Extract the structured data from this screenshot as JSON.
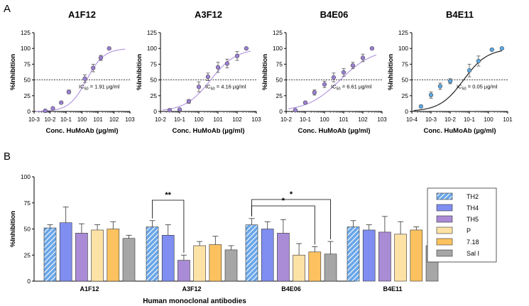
{
  "panels": {
    "a": "A",
    "b": "B"
  },
  "chart_data": [
    {
      "type": "scatter",
      "title": "A1F12",
      "xlabel": "Conc. HuMoAb (µg/ml)",
      "ylabel": "%Inhibition",
      "xscale": "log",
      "xlim_exp": [
        -3,
        3
      ],
      "ylim": [
        0,
        125
      ],
      "yticks": [
        0,
        25,
        50,
        75,
        100,
        125
      ],
      "xtick_labels": [
        "10-3",
        "10-2",
        "10-1",
        "100",
        "101",
        "102",
        "103"
      ],
      "x": [
        0.005,
        0.015,
        0.05,
        0.15,
        1.5,
        5,
        15,
        50
      ],
      "y": [
        1,
        5,
        14,
        31,
        52,
        69,
        85,
        100
      ],
      "err": [
        0,
        0,
        2,
        3,
        6,
        6,
        4,
        0
      ],
      "ic50": 1.91,
      "ic50_text": "1.91 µg/ml",
      "ic50_prefix": "IC",
      "ic50_sub": "50",
      "ic50_eq": " = ",
      "hill": 0.8,
      "point_color": "#9b7fd4",
      "curve_color": "#b59ae0"
    },
    {
      "type": "scatter",
      "title": "A3F12",
      "xlabel": "Conc. HuMoAb (µg/ml)",
      "ylabel": "%Inhibition",
      "xscale": "log",
      "xlim_exp": [
        -2,
        3
      ],
      "ylim": [
        0,
        125
      ],
      "yticks": [
        0,
        25,
        50,
        75,
        100,
        125
      ],
      "xtick_labels": [
        "10-2",
        "10-1",
        "100",
        "101",
        "102",
        "103"
      ],
      "x": [
        0.03,
        0.1,
        0.3,
        1,
        3,
        10,
        30,
        100,
        300
      ],
      "y": [
        2,
        3,
        16,
        39,
        55,
        70,
        76,
        88,
        100
      ],
      "err": [
        0,
        0,
        3,
        8,
        6,
        8,
        7,
        7,
        0
      ],
      "ic50": 4.16,
      "ic50_text": "4.16 µg/ml",
      "ic50_prefix": "IC",
      "ic50_sub": "50",
      "ic50_eq": " = ",
      "hill": 0.65,
      "point_color": "#9b7fd4",
      "curve_color": "#b59ae0"
    },
    {
      "type": "scatter",
      "title": "B4E06",
      "xlabel": "Conc. HuMoAb (µg/ml)",
      "ylabel": "%Inhibition",
      "xscale": "log",
      "xlim_exp": [
        -2,
        3
      ],
      "ylim": [
        0,
        125
      ],
      "yticks": [
        0,
        25,
        50,
        75,
        100,
        125
      ],
      "xtick_labels": [
        "10-2",
        "10-1",
        "100",
        "101",
        "102",
        "103"
      ],
      "x": [
        0.03,
        0.1,
        0.3,
        1,
        3,
        10,
        30,
        100,
        300
      ],
      "y": [
        2,
        14,
        30,
        43,
        54,
        62,
        73,
        85,
        100
      ],
      "err": [
        0,
        2,
        4,
        5,
        7,
        6,
        5,
        6,
        0
      ],
      "ic50": 6.61,
      "ic50_text": "6.61 µg/ml",
      "ic50_prefix": "IC",
      "ic50_sub": "50",
      "ic50_eq": " = ",
      "hill": 0.5,
      "point_color": "#9b7fd4",
      "curve_color": "#b59ae0"
    },
    {
      "type": "scatter",
      "title": "B4E11",
      "xlabel": "Conc. HuMoAb (µg/ml)",
      "ylabel": "%Inhibition",
      "xscale": "log",
      "xlim_exp": [
        -4,
        1
      ],
      "ylim": [
        0,
        125
      ],
      "yticks": [
        0,
        25,
        50,
        75,
        100,
        125
      ],
      "xtick_labels": [
        "10-4",
        "10-3",
        "10-2",
        "10-1",
        "100",
        "101"
      ],
      "x": [
        0.0003,
        0.001,
        0.003,
        0.01,
        0.1,
        0.3,
        1.5,
        5
      ],
      "y": [
        8,
        26,
        40,
        48,
        65,
        80,
        98,
        100
      ],
      "err": [
        0,
        5,
        5,
        4,
        10,
        8,
        0,
        0
      ],
      "ic50": 0.05,
      "ic50_text": "0.05 µg/ml",
      "ic50_prefix": "IC",
      "ic50_sub": "50",
      "ic50_eq": " = ",
      "hill": 0.7,
      "point_color": "#5aa9e6",
      "curve_color": "#222222"
    },
    {
      "type": "bar",
      "xlabel": "Human monoclonal antibodies",
      "ylabel": "%Inhibition",
      "ylim": [
        0,
        100
      ],
      "yticks": [
        0,
        25,
        50,
        75,
        100
      ],
      "categories": [
        "A1F12",
        "A3F12",
        "B4E06",
        "B4E11"
      ],
      "series": [
        {
          "name": "TH2",
          "color": "#6aa6e8",
          "hatch": true,
          "values": [
            51,
            52,
            54,
            52
          ],
          "err": [
            3,
            6,
            6,
            6
          ]
        },
        {
          "name": "TH4",
          "color": "#7f8ef0",
          "values": [
            56,
            44,
            50,
            49
          ],
          "err": [
            15,
            10,
            7,
            5
          ]
        },
        {
          "name": "TH5",
          "color": "#a98bd6",
          "values": [
            46,
            20,
            46,
            47
          ],
          "err": [
            9,
            5,
            13,
            15
          ]
        },
        {
          "name": "P",
          "color": "#fde2a6",
          "values": [
            49,
            34,
            25,
            45
          ],
          "err": [
            5,
            4,
            11,
            12
          ]
        },
        {
          "name": "7.18",
          "color": "#fdc25f",
          "values": [
            50,
            35,
            28,
            49
          ],
          "err": [
            7,
            8,
            5,
            3
          ]
        },
        {
          "name": "Sal I",
          "color": "#a6a6a6",
          "values": [
            41,
            30,
            26,
            34
          ],
          "err": [
            3,
            4,
            12,
            2
          ]
        }
      ],
      "significance": [
        {
          "group": "A3F12",
          "from": "TH2",
          "to": "TH5",
          "label": "**"
        },
        {
          "group": "B4E06",
          "from": "TH2",
          "to": "Sal I",
          "label": "*"
        },
        {
          "group": "B4E06",
          "from": "TH2",
          "to": "7.18",
          "label": "*"
        }
      ],
      "legend_position": "right"
    }
  ]
}
